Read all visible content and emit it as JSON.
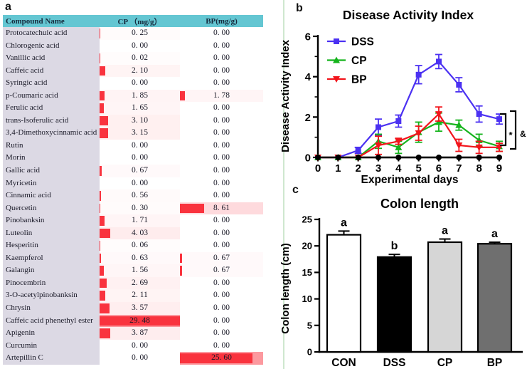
{
  "panel_labels": {
    "a": "a",
    "b": "b",
    "c": "c"
  },
  "table": {
    "headers": [
      "Compound Name",
      "CP （mg/g）",
      "BP(mg/g)"
    ],
    "max_value": 29.48,
    "colors": {
      "header_bg": "#64c6d2",
      "name_col_bg": "#dcd9e4",
      "bar_red": "#f9333e"
    },
    "rows": [
      {
        "name": "Protocatechuic acid",
        "cp": 0.25,
        "bp": 0.0
      },
      {
        "name": "Chlorogenic acid",
        "cp": 0.0,
        "bp": 0.0
      },
      {
        "name": "Vanillic acid",
        "cp": 0.02,
        "bp": 0.0
      },
      {
        "name": "Caffeic acid",
        "cp": 2.1,
        "bp": 0.0
      },
      {
        "name": "Syringic acid",
        "cp": 0.0,
        "bp": 0.0
      },
      {
        "name": "p-Coumaric acid",
        "cp": 1.85,
        "bp": 1.78
      },
      {
        "name": "Ferulic acid",
        "cp": 1.65,
        "bp": 0.0
      },
      {
        "name": "trans-Isoferulic acid",
        "cp": 3.1,
        "bp": 0.0
      },
      {
        "name": "3,4-Dimethoxycinnamic acid",
        "cp": 3.15,
        "bp": 0.0
      },
      {
        "name": "Rutin",
        "cp": 0.0,
        "bp": 0.0
      },
      {
        "name": "Morin",
        "cp": 0.0,
        "bp": 0.0
      },
      {
        "name": "Gallic acid",
        "cp": 0.67,
        "bp": 0.0
      },
      {
        "name": "Myricetin",
        "cp": 0.0,
        "bp": 0.0
      },
      {
        "name": "Cinnamic acid",
        "cp": 0.56,
        "bp": 0.0
      },
      {
        "name": "Quercetin",
        "cp": 0.3,
        "bp": 8.61
      },
      {
        "name": "Pinobanksin",
        "cp": 1.71,
        "bp": 0.0
      },
      {
        "name": "Luteolin",
        "cp": 4.03,
        "bp": 0.0
      },
      {
        "name": "Hesperitin",
        "cp": 0.06,
        "bp": 0.0
      },
      {
        "name": "Kaempferol",
        "cp": 0.63,
        "bp": 0.67
      },
      {
        "name": "Galangin",
        "cp": 1.56,
        "bp": 0.67
      },
      {
        "name": "Pinocembrin",
        "cp": 2.69,
        "bp": 0.0
      },
      {
        "name": "3-O-acetylpinobanksin",
        "cp": 2.11,
        "bp": 0.0
      },
      {
        "name": "Chrysin",
        "cp": 3.57,
        "bp": 0.0
      },
      {
        "name": "Caffeic acid phenethyl ester",
        "cp": 29.48,
        "bp": 0.0
      },
      {
        "name": "Apigenin",
        "cp": 3.87,
        "bp": 0.0
      },
      {
        "name": "Curcumin",
        "cp": 0.0,
        "bp": 0.0
      },
      {
        "name": "Artepillin C",
        "cp": 0.0,
        "bp": 25.6
      }
    ]
  },
  "chart_data": [
    {
      "type": "line",
      "title": "Disease Activity Index",
      "xlabel": "Experimental days",
      "ylabel": "Disease Activity Index",
      "x": [
        0,
        1,
        2,
        3,
        4,
        5,
        6,
        7,
        8,
        9
      ],
      "xlim": [
        0,
        9
      ],
      "ylim": [
        0,
        6
      ],
      "yticks": [
        0,
        2,
        4,
        6
      ],
      "yticks_minor": [
        1,
        3,
        5
      ],
      "grid": false,
      "legend_position": "upper-left",
      "series": [
        {
          "name": "DSS",
          "color": "#4b31f2",
          "marker": "square",
          "in_legend": true,
          "values": [
            0,
            0,
            0.35,
            1.5,
            1.8,
            4.1,
            4.75,
            3.6,
            2.15,
            1.9
          ],
          "errors": [
            0,
            0,
            0.15,
            0.4,
            0.3,
            0.45,
            0.35,
            0.35,
            0.4,
            0.25
          ]
        },
        {
          "name": "CP",
          "color": "#15b41c",
          "marker": "triangle-up",
          "in_legend": true,
          "values": [
            0,
            0,
            0,
            0.8,
            0.5,
            1.25,
            1.75,
            1.6,
            0.85,
            0.55
          ],
          "errors": [
            0,
            0,
            0,
            0.35,
            0.3,
            0.5,
            0.45,
            0.25,
            0.3,
            0.25
          ]
        },
        {
          "name": "BP",
          "color": "#f2141b",
          "marker": "triangle-down",
          "in_legend": true,
          "values": [
            0,
            0,
            0,
            0.6,
            0.8,
            1.2,
            2.15,
            0.6,
            0.5,
            0.5
          ],
          "errors": [
            0,
            0,
            0,
            0.45,
            0.15,
            0.35,
            0.35,
            0.3,
            0.3,
            0.2
          ]
        },
        {
          "name": "CON",
          "color": "#000000",
          "marker": "circle",
          "in_legend": false,
          "values": [
            0,
            0,
            0,
            0,
            0,
            0,
            0,
            0,
            0,
            0
          ],
          "errors": [
            0,
            0,
            0,
            0,
            0,
            0,
            0,
            0,
            0,
            0
          ]
        }
      ],
      "significance": {
        "inner": "*",
        "outer": "&"
      }
    },
    {
      "type": "bar",
      "title": "Colon length",
      "ylabel": "Colon length (cm)",
      "categories": [
        "CON",
        "DSS",
        "CP",
        "BP"
      ],
      "values": [
        22.1,
        17.9,
        20.7,
        20.4
      ],
      "errors": [
        0.7,
        0.5,
        0.6,
        0.3
      ],
      "bar_labels": [
        "a",
        "b",
        "a",
        "a"
      ],
      "bar_colors": [
        "#ffffff",
        "#000000",
        "#d6d6d6",
        "#6f6f6f"
      ],
      "ylim": [
        0,
        25
      ],
      "yticks": [
        0,
        5,
        10,
        15,
        20,
        25
      ],
      "grid": false
    }
  ]
}
